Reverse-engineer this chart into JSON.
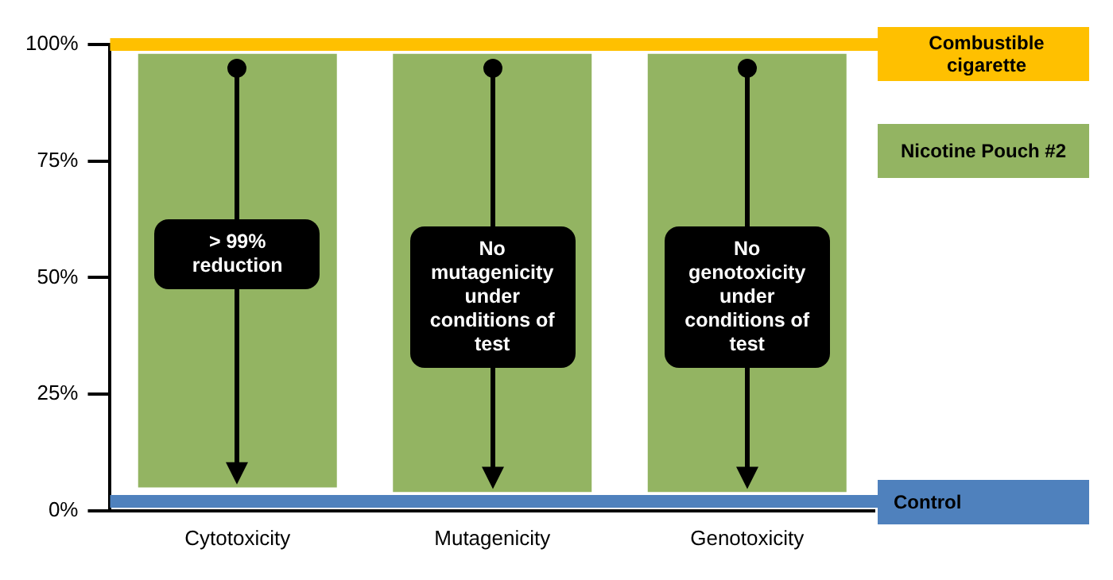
{
  "chart_data": {
    "type": "bar",
    "categories": [
      "Cytotoxicity",
      "Mutagenicity",
      "Genotoxicity"
    ],
    "series": [
      {
        "name": "Nicotine Pouch #2",
        "color": "#93b462",
        "values": [
          93,
          94,
          94
        ],
        "base": [
          5,
          4,
          4
        ]
      }
    ],
    "ylim": [
      0,
      100
    ],
    "yticks": [
      {
        "value": 0,
        "label": "0%"
      },
      {
        "value": 25,
        "label": "25%"
      },
      {
        "value": 50,
        "label": "50%"
      },
      {
        "value": 75,
        "label": "75%"
      },
      {
        "value": 100,
        "label": "100%"
      }
    ],
    "ref_lines": [
      {
        "axis": "y",
        "value": 100,
        "label": "Combustible cigarette",
        "color": "#ffc000"
      },
      {
        "axis": "y",
        "value": 2,
        "label": "Control",
        "color": "#4f81bd"
      }
    ],
    "annotations": [
      "> 99% reduction",
      "No mutagenicity under conditions of test",
      "No genotoxicity under conditions of test"
    ],
    "grid": false,
    "legend": "top right"
  }
}
